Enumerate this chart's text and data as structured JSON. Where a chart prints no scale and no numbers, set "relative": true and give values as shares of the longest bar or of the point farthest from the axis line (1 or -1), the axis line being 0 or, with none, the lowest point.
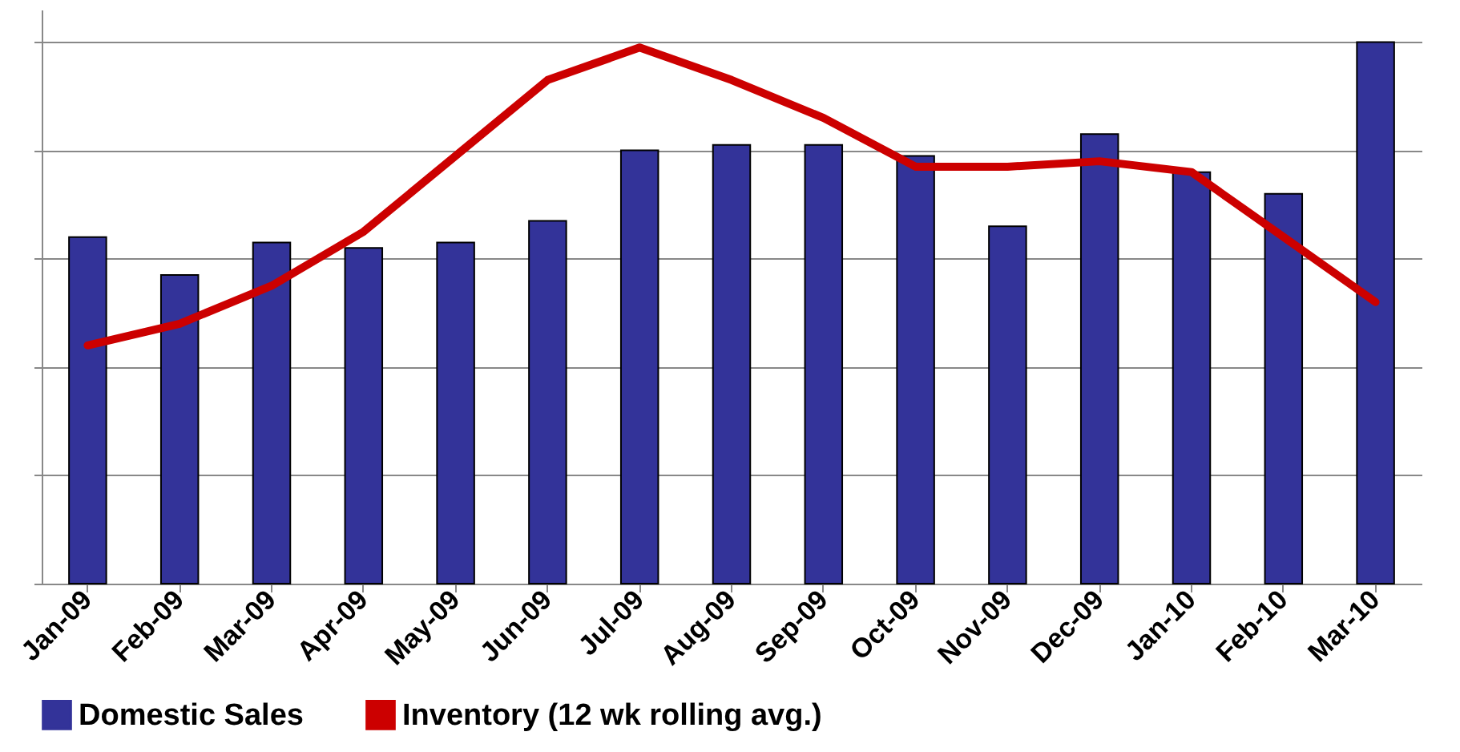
{
  "chart_data": {
    "type": "bar",
    "relative": true,
    "categories": [
      "Jan-09",
      "Feb-09",
      "Mar-09",
      "Apr-09",
      "May-09",
      "Jun-09",
      "Jul-09",
      "Aug-09",
      "Sep-09",
      "Oct-09",
      "Nov-09",
      "Dec-09",
      "Jan-10",
      "Feb-10",
      "Mar-10"
    ],
    "series": [
      {
        "name": "Domestic  Sales",
        "color": "#333399",
        "values": [
          0.64,
          0.57,
          0.63,
          0.62,
          0.63,
          0.67,
          0.8,
          0.81,
          0.81,
          0.79,
          0.66,
          0.83,
          0.76,
          0.72,
          1.0
        ]
      },
      {
        "name": "Inventory (12 wk rolling avg.)",
        "type": "line",
        "color": "#cc0000",
        "values": [
          0.44,
          0.48,
          0.55,
          0.65,
          0.79,
          0.93,
          0.99,
          0.93,
          0.86,
          0.77,
          0.77,
          0.78,
          0.76,
          0.64,
          0.52
        ]
      }
    ],
    "grid": "y",
    "legend": "bottom",
    "marker": "none",
    "line_style": "solid"
  }
}
